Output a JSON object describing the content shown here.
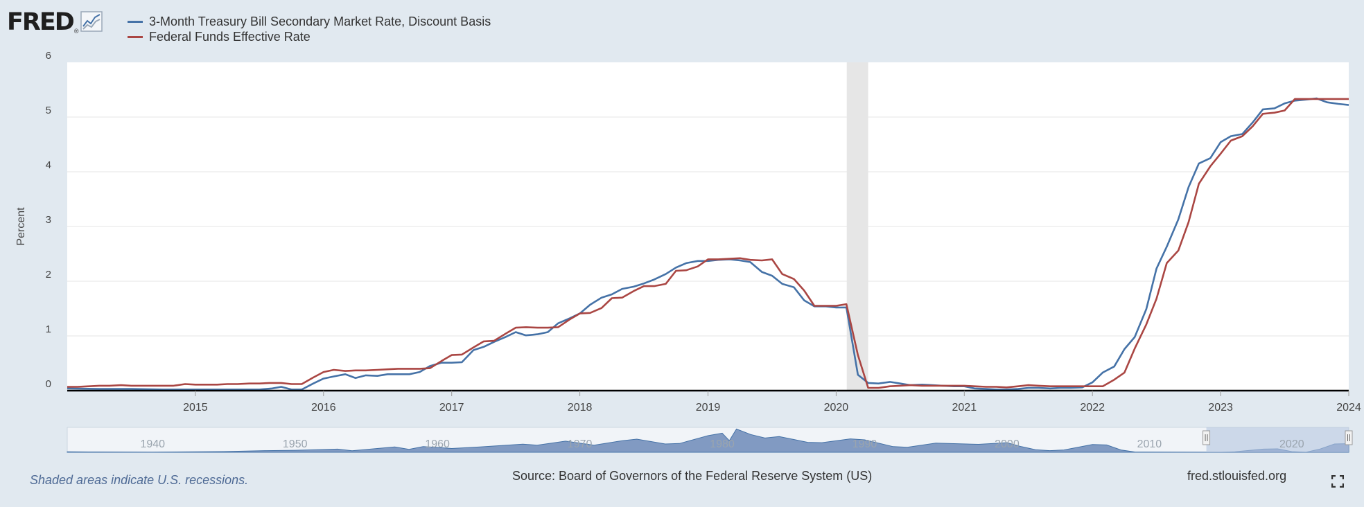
{
  "logo": {
    "text": "FRED",
    "reg": "®"
  },
  "legend": [
    {
      "name": "3-Month Treasury Bill Secondary Market Rate, Discount Basis",
      "color": "#4572a7"
    },
    {
      "name": "Federal Funds Effective Rate",
      "color": "#aa4643"
    }
  ],
  "footer": {
    "notes": "Shaded areas indicate U.S. recessions.",
    "source": "Source: Board of Governors of the Federal Reserve System (US)",
    "site": "fred.stlouisfed.org"
  },
  "icons": {
    "logo_chart": "line-chart-icon",
    "fullscreen": "fullscreen-icon"
  },
  "colors": {
    "background": "#e1e9f0",
    "plot_background": "#ffffff",
    "recession": "#e6e6e6",
    "navigator_fill": "#6d89b8",
    "navigator_window": "#b4c4e0"
  },
  "chart_data": {
    "type": "line",
    "ylabel": "Percent",
    "xlim": [
      2014.0,
      2024.0
    ],
    "ylim": [
      0,
      6
    ],
    "yticks": [
      0,
      1,
      2,
      3,
      4,
      5,
      6
    ],
    "xticks": [
      2015,
      2016,
      2017,
      2018,
      2019,
      2020,
      2021,
      2022,
      2023,
      2024
    ],
    "recessions": [
      [
        2020.083,
        2020.25
      ]
    ],
    "series": [
      {
        "name": "3-Month Treasury Bill Secondary Market Rate, Discount Basis",
        "color": "#4572a7",
        "points": [
          [
            2014.0,
            0.04
          ],
          [
            2014.25,
            0.03
          ],
          [
            2014.5,
            0.03
          ],
          [
            2014.75,
            0.02
          ],
          [
            2015.0,
            0.02
          ],
          [
            2015.25,
            0.02
          ],
          [
            2015.5,
            0.02
          ],
          [
            2015.6,
            0.04
          ],
          [
            2015.67,
            0.07
          ],
          [
            2015.75,
            0.02
          ],
          [
            2015.83,
            0.02
          ],
          [
            2015.92,
            0.13
          ],
          [
            2016.0,
            0.22
          ],
          [
            2016.08,
            0.26
          ],
          [
            2016.17,
            0.3
          ],
          [
            2016.25,
            0.23
          ],
          [
            2016.33,
            0.28
          ],
          [
            2016.42,
            0.27
          ],
          [
            2016.5,
            0.3
          ],
          [
            2016.58,
            0.3
          ],
          [
            2016.67,
            0.3
          ],
          [
            2016.75,
            0.34
          ],
          [
            2016.83,
            0.45
          ],
          [
            2016.92,
            0.51
          ],
          [
            2017.0,
            0.51
          ],
          [
            2017.08,
            0.52
          ],
          [
            2017.17,
            0.74
          ],
          [
            2017.25,
            0.8
          ],
          [
            2017.33,
            0.89
          ],
          [
            2017.42,
            0.98
          ],
          [
            2017.5,
            1.07
          ],
          [
            2017.58,
            1.01
          ],
          [
            2017.67,
            1.03
          ],
          [
            2017.75,
            1.07
          ],
          [
            2017.83,
            1.23
          ],
          [
            2017.92,
            1.32
          ],
          [
            2018.0,
            1.41
          ],
          [
            2018.08,
            1.57
          ],
          [
            2018.17,
            1.7
          ],
          [
            2018.25,
            1.76
          ],
          [
            2018.33,
            1.86
          ],
          [
            2018.42,
            1.9
          ],
          [
            2018.5,
            1.96
          ],
          [
            2018.58,
            2.03
          ],
          [
            2018.67,
            2.13
          ],
          [
            2018.75,
            2.25
          ],
          [
            2018.83,
            2.33
          ],
          [
            2018.92,
            2.37
          ],
          [
            2019.0,
            2.37
          ],
          [
            2019.08,
            2.39
          ],
          [
            2019.17,
            2.4
          ],
          [
            2019.25,
            2.38
          ],
          [
            2019.33,
            2.35
          ],
          [
            2019.42,
            2.17
          ],
          [
            2019.5,
            2.1
          ],
          [
            2019.58,
            1.95
          ],
          [
            2019.67,
            1.89
          ],
          [
            2019.75,
            1.65
          ],
          [
            2019.83,
            1.54
          ],
          [
            2019.92,
            1.54
          ],
          [
            2020.0,
            1.52
          ],
          [
            2020.08,
            1.52
          ],
          [
            2020.17,
            0.29
          ],
          [
            2020.25,
            0.14
          ],
          [
            2020.33,
            0.13
          ],
          [
            2020.42,
            0.16
          ],
          [
            2020.5,
            0.13
          ],
          [
            2020.58,
            0.1
          ],
          [
            2020.67,
            0.11
          ],
          [
            2020.75,
            0.1
          ],
          [
            2020.83,
            0.09
          ],
          [
            2020.92,
            0.08
          ],
          [
            2021.0,
            0.08
          ],
          [
            2021.08,
            0.04
          ],
          [
            2021.17,
            0.03
          ],
          [
            2021.25,
            0.02
          ],
          [
            2021.33,
            0.02
          ],
          [
            2021.42,
            0.03
          ],
          [
            2021.5,
            0.05
          ],
          [
            2021.58,
            0.05
          ],
          [
            2021.67,
            0.04
          ],
          [
            2021.75,
            0.05
          ],
          [
            2021.83,
            0.05
          ],
          [
            2021.92,
            0.06
          ],
          [
            2022.0,
            0.15
          ],
          [
            2022.08,
            0.33
          ],
          [
            2022.17,
            0.44
          ],
          [
            2022.25,
            0.76
          ],
          [
            2022.33,
            0.98
          ],
          [
            2022.42,
            1.49
          ],
          [
            2022.5,
            2.23
          ],
          [
            2022.58,
            2.63
          ],
          [
            2022.67,
            3.13
          ],
          [
            2022.75,
            3.72
          ],
          [
            2022.83,
            4.15
          ],
          [
            2022.92,
            4.25
          ],
          [
            2023.0,
            4.54
          ],
          [
            2023.08,
            4.65
          ],
          [
            2023.17,
            4.69
          ],
          [
            2023.25,
            4.9
          ],
          [
            2023.33,
            5.14
          ],
          [
            2023.42,
            5.16
          ],
          [
            2023.5,
            5.25
          ],
          [
            2023.58,
            5.3
          ],
          [
            2023.67,
            5.32
          ],
          [
            2023.75,
            5.34
          ],
          [
            2023.83,
            5.27
          ],
          [
            2023.92,
            5.24
          ],
          [
            2024.0,
            5.22
          ]
        ]
      },
      {
        "name": "Federal Funds Effective Rate",
        "color": "#aa4643",
        "points": [
          [
            2014.0,
            0.07
          ],
          [
            2014.08,
            0.07
          ],
          [
            2014.17,
            0.08
          ],
          [
            2014.25,
            0.09
          ],
          [
            2014.33,
            0.09
          ],
          [
            2014.42,
            0.1
          ],
          [
            2014.5,
            0.09
          ],
          [
            2014.58,
            0.09
          ],
          [
            2014.67,
            0.09
          ],
          [
            2014.75,
            0.09
          ],
          [
            2014.83,
            0.09
          ],
          [
            2014.92,
            0.12
          ],
          [
            2015.0,
            0.11
          ],
          [
            2015.08,
            0.11
          ],
          [
            2015.17,
            0.11
          ],
          [
            2015.25,
            0.12
          ],
          [
            2015.33,
            0.12
          ],
          [
            2015.42,
            0.13
          ],
          [
            2015.5,
            0.13
          ],
          [
            2015.58,
            0.14
          ],
          [
            2015.67,
            0.14
          ],
          [
            2015.75,
            0.12
          ],
          [
            2015.83,
            0.12
          ],
          [
            2015.92,
            0.24
          ],
          [
            2016.0,
            0.34
          ],
          [
            2016.08,
            0.38
          ],
          [
            2016.17,
            0.36
          ],
          [
            2016.25,
            0.37
          ],
          [
            2016.33,
            0.37
          ],
          [
            2016.42,
            0.38
          ],
          [
            2016.5,
            0.39
          ],
          [
            2016.58,
            0.4
          ],
          [
            2016.67,
            0.4
          ],
          [
            2016.75,
            0.4
          ],
          [
            2016.83,
            0.41
          ],
          [
            2016.92,
            0.54
          ],
          [
            2017.0,
            0.65
          ],
          [
            2017.08,
            0.66
          ],
          [
            2017.17,
            0.79
          ],
          [
            2017.25,
            0.9
          ],
          [
            2017.33,
            0.91
          ],
          [
            2017.42,
            1.04
          ],
          [
            2017.5,
            1.15
          ],
          [
            2017.58,
            1.16
          ],
          [
            2017.67,
            1.15
          ],
          [
            2017.75,
            1.15
          ],
          [
            2017.83,
            1.16
          ],
          [
            2017.92,
            1.3
          ],
          [
            2018.0,
            1.41
          ],
          [
            2018.08,
            1.42
          ],
          [
            2018.17,
            1.51
          ],
          [
            2018.25,
            1.69
          ],
          [
            2018.33,
            1.7
          ],
          [
            2018.42,
            1.82
          ],
          [
            2018.5,
            1.91
          ],
          [
            2018.58,
            1.91
          ],
          [
            2018.67,
            1.95
          ],
          [
            2018.75,
            2.19
          ],
          [
            2018.83,
            2.2
          ],
          [
            2018.92,
            2.27
          ],
          [
            2019.0,
            2.4
          ],
          [
            2019.08,
            2.4
          ],
          [
            2019.17,
            2.41
          ],
          [
            2019.25,
            2.42
          ],
          [
            2019.33,
            2.39
          ],
          [
            2019.42,
            2.38
          ],
          [
            2019.5,
            2.4
          ],
          [
            2019.58,
            2.13
          ],
          [
            2019.67,
            2.04
          ],
          [
            2019.75,
            1.83
          ],
          [
            2019.83,
            1.55
          ],
          [
            2019.92,
            1.55
          ],
          [
            2020.0,
            1.55
          ],
          [
            2020.08,
            1.58
          ],
          [
            2020.17,
            0.65
          ],
          [
            2020.25,
            0.05
          ],
          [
            2020.33,
            0.05
          ],
          [
            2020.42,
            0.08
          ],
          [
            2020.5,
            0.09
          ],
          [
            2020.58,
            0.1
          ],
          [
            2020.67,
            0.09
          ],
          [
            2020.75,
            0.09
          ],
          [
            2020.83,
            0.09
          ],
          [
            2020.92,
            0.09
          ],
          [
            2021.0,
            0.09
          ],
          [
            2021.08,
            0.08
          ],
          [
            2021.17,
            0.07
          ],
          [
            2021.25,
            0.07
          ],
          [
            2021.33,
            0.06
          ],
          [
            2021.42,
            0.08
          ],
          [
            2021.5,
            0.1
          ],
          [
            2021.58,
            0.09
          ],
          [
            2021.67,
            0.08
          ],
          [
            2021.75,
            0.08
          ],
          [
            2021.83,
            0.08
          ],
          [
            2021.92,
            0.08
          ],
          [
            2022.0,
            0.08
          ],
          [
            2022.08,
            0.08
          ],
          [
            2022.17,
            0.2
          ],
          [
            2022.25,
            0.33
          ],
          [
            2022.33,
            0.77
          ],
          [
            2022.42,
            1.21
          ],
          [
            2022.5,
            1.68
          ],
          [
            2022.58,
            2.33
          ],
          [
            2022.67,
            2.56
          ],
          [
            2022.75,
            3.08
          ],
          [
            2022.83,
            3.78
          ],
          [
            2022.92,
            4.1
          ],
          [
            2023.0,
            4.33
          ],
          [
            2023.08,
            4.57
          ],
          [
            2023.17,
            4.65
          ],
          [
            2023.25,
            4.83
          ],
          [
            2023.33,
            5.06
          ],
          [
            2023.42,
            5.08
          ],
          [
            2023.5,
            5.12
          ],
          [
            2023.58,
            5.33
          ],
          [
            2023.67,
            5.33
          ],
          [
            2023.75,
            5.33
          ],
          [
            2023.83,
            5.33
          ],
          [
            2023.92,
            5.33
          ],
          [
            2024.0,
            5.33
          ]
        ]
      }
    ],
    "navigator": {
      "range": [
        1934.0,
        2024.0
      ],
      "ticks": [
        1940,
        1950,
        1960,
        1970,
        1980,
        1990,
        2000,
        2010,
        2020
      ],
      "selected": [
        2014.0,
        2024.0
      ],
      "points": [
        [
          1934,
          0.3
        ],
        [
          1936,
          0.2
        ],
        [
          1940,
          0.1
        ],
        [
          1945,
          0.4
        ],
        [
          1948,
          1.0
        ],
        [
          1950,
          1.2
        ],
        [
          1953,
          1.9
        ],
        [
          1954,
          0.9
        ],
        [
          1957,
          3.2
        ],
        [
          1958,
          1.8
        ],
        [
          1959,
          3.4
        ],
        [
          1960,
          2.9
        ],
        [
          1961,
          2.3
        ],
        [
          1963,
          3.2
        ],
        [
          1966,
          4.9
        ],
        [
          1967,
          4.3
        ],
        [
          1969,
          6.7
        ],
        [
          1971,
          4.3
        ],
        [
          1973,
          7.0
        ],
        [
          1974,
          7.9
        ],
        [
          1976,
          5.0
        ],
        [
          1977,
          5.3
        ],
        [
          1979,
          10.0
        ],
        [
          1980,
          11.5
        ],
        [
          1980.5,
          7.0
        ],
        [
          1981,
          14.0
        ],
        [
          1982,
          10.7
        ],
        [
          1983,
          8.6
        ],
        [
          1984,
          9.5
        ],
        [
          1986,
          6.0
        ],
        [
          1987,
          5.8
        ],
        [
          1989,
          8.1
        ],
        [
          1990,
          7.5
        ],
        [
          1992,
          3.4
        ],
        [
          1993,
          3.0
        ],
        [
          1995,
          5.5
        ],
        [
          1998,
          4.8
        ],
        [
          2000,
          5.8
        ],
        [
          2001,
          3.4
        ],
        [
          2002,
          1.6
        ],
        [
          2003,
          1.0
        ],
        [
          2004,
          1.4
        ],
        [
          2006,
          4.7
        ],
        [
          2007,
          4.4
        ],
        [
          2008,
          1.4
        ],
        [
          2009,
          0.15
        ],
        [
          2012,
          0.08
        ],
        [
          2015,
          0.05
        ],
        [
          2016,
          0.3
        ],
        [
          2018,
          1.9
        ],
        [
          2019,
          2.1
        ],
        [
          2020,
          0.4
        ],
        [
          2021,
          0.05
        ],
        [
          2022,
          2.0
        ],
        [
          2023,
          5.0
        ],
        [
          2024,
          5.2
        ]
      ]
    }
  }
}
